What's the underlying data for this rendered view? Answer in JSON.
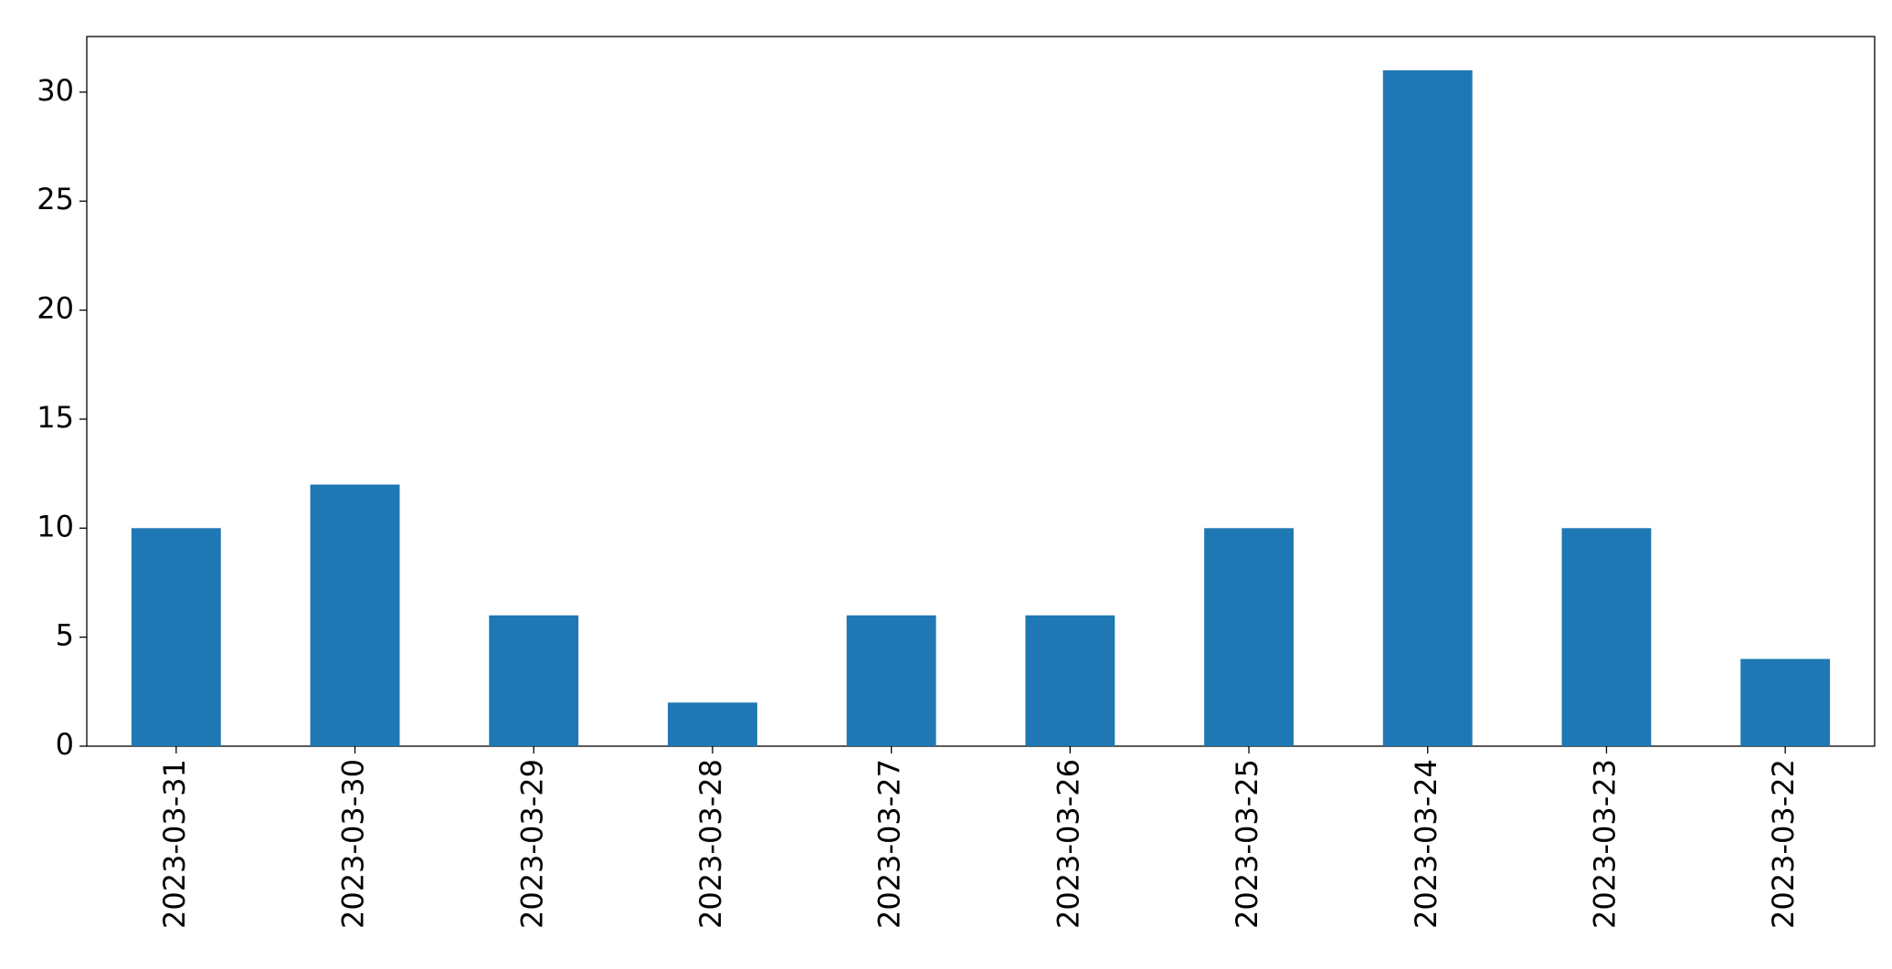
{
  "chart_data": {
    "type": "bar",
    "categories": [
      "2023-03-31",
      "2023-03-30",
      "2023-03-29",
      "2023-03-28",
      "2023-03-27",
      "2023-03-26",
      "2023-03-25",
      "2023-03-24",
      "2023-03-23",
      "2023-03-22"
    ],
    "values": [
      10,
      12,
      6,
      2,
      6,
      6,
      10,
      31,
      10,
      4
    ],
    "color": "#1f77b4",
    "ylim": [
      0,
      32.55
    ],
    "yticks": [
      0,
      5,
      10,
      15,
      20,
      25,
      30
    ],
    "grid": false
  }
}
